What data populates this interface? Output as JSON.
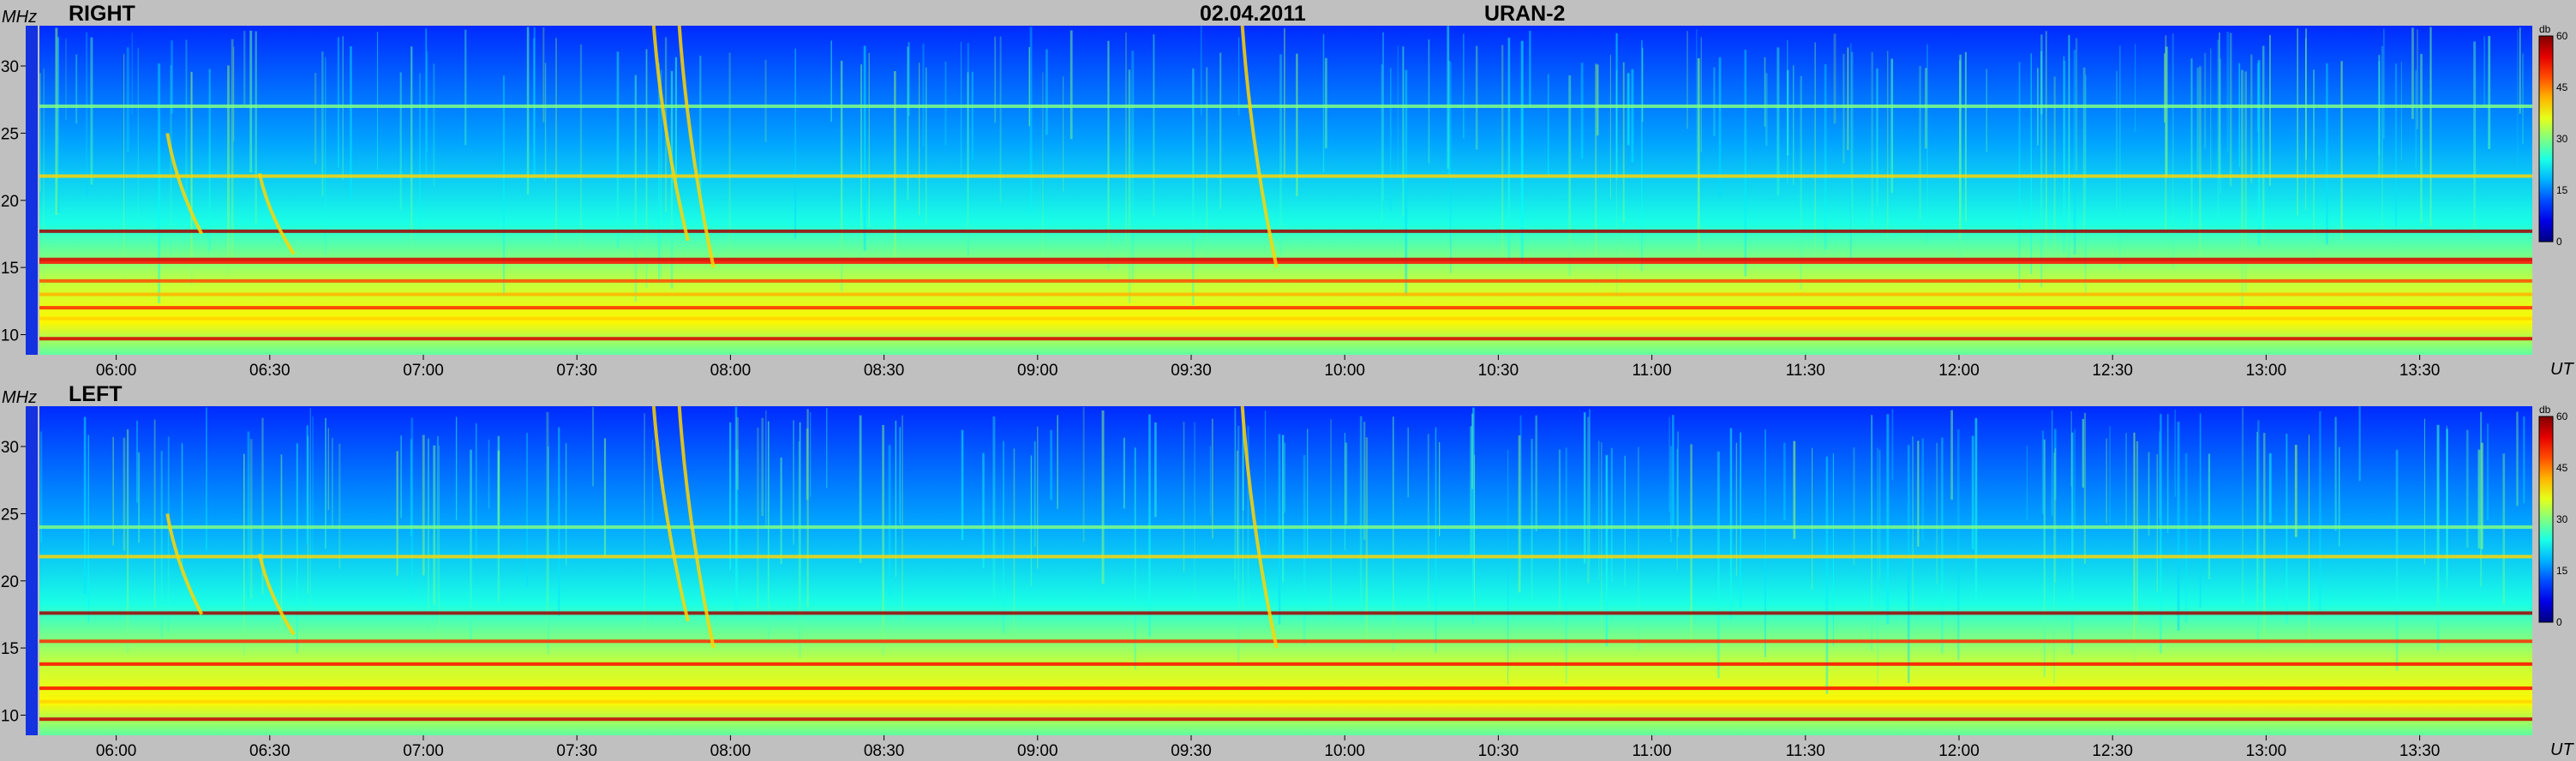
{
  "header": {
    "date": "02.04.2011",
    "instrument": "URAN-2"
  },
  "panels": [
    {
      "name": "RIGHT"
    },
    {
      "name": "LEFT"
    }
  ],
  "axes": {
    "y_unit": "MHz",
    "x_unit": "UT",
    "colorbar_unit": "db"
  },
  "chart_data": {
    "type": "heatmap",
    "title": "02.04.2011 URAN-2",
    "xlabel": "UT",
    "ylabel": "MHz",
    "x_ticks": [
      "06:00",
      "06:30",
      "07:00",
      "07:30",
      "08:00",
      "08:30",
      "09:00",
      "09:30",
      "10:00",
      "10:30",
      "11:00",
      "11:30",
      "12:00",
      "12:30",
      "13:00",
      "13:30"
    ],
    "y_ticks": [
      10,
      15,
      20,
      25,
      30
    ],
    "xlim": [
      "05:45",
      "13:52"
    ],
    "ylim": [
      8.5,
      33
    ],
    "colorbar": {
      "label": "db",
      "ticks": [
        0,
        15,
        30,
        45,
        60
      ],
      "range": [
        0,
        60
      ],
      "colormap": "jet"
    },
    "panels": [
      {
        "name": "RIGHT",
        "lines_MHz": [
          {
            "freq": 17.7,
            "level": 58
          },
          {
            "freq": 15.6,
            "level": 55
          },
          {
            "freq": 15.4,
            "level": 52
          },
          {
            "freq": 14.0,
            "level": 48
          },
          {
            "freq": 13.0,
            "level": 42
          },
          {
            "freq": 12.0,
            "level": 50
          },
          {
            "freq": 11.2,
            "level": 40
          },
          {
            "freq": 9.7,
            "level": 55
          },
          {
            "freq": 21.8,
            "level": 40
          },
          {
            "freq": 27.0,
            "level": 30
          }
        ],
        "bursts_UT": [
          {
            "t": "06:10",
            "f_start": 25,
            "f_end": 17.5
          },
          {
            "t": "06:28",
            "f_start": 22,
            "f_end": 16
          },
          {
            "t": "07:45",
            "f_start": 33,
            "f_end": 17
          },
          {
            "t": "07:50",
            "f_start": 33,
            "f_end": 15
          },
          {
            "t": "09:40",
            "f_start": 33,
            "f_end": 15
          }
        ]
      },
      {
        "name": "LEFT",
        "lines_MHz": [
          {
            "freq": 17.6,
            "level": 58
          },
          {
            "freq": 15.5,
            "level": 50
          },
          {
            "freq": 13.8,
            "level": 52
          },
          {
            "freq": 12.0,
            "level": 52
          },
          {
            "freq": 11.0,
            "level": 40
          },
          {
            "freq": 9.7,
            "level": 56
          },
          {
            "freq": 21.8,
            "level": 40
          },
          {
            "freq": 24.0,
            "level": 30
          }
        ],
        "bursts_UT": [
          {
            "t": "06:10",
            "f_start": 25,
            "f_end": 17.5
          },
          {
            "t": "06:28",
            "f_start": 22,
            "f_end": 16
          },
          {
            "t": "07:45",
            "f_start": 33,
            "f_end": 17
          },
          {
            "t": "07:50",
            "f_start": 33,
            "f_end": 15
          },
          {
            "t": "09:40",
            "f_start": 33,
            "f_end": 15
          }
        ]
      }
    ]
  }
}
